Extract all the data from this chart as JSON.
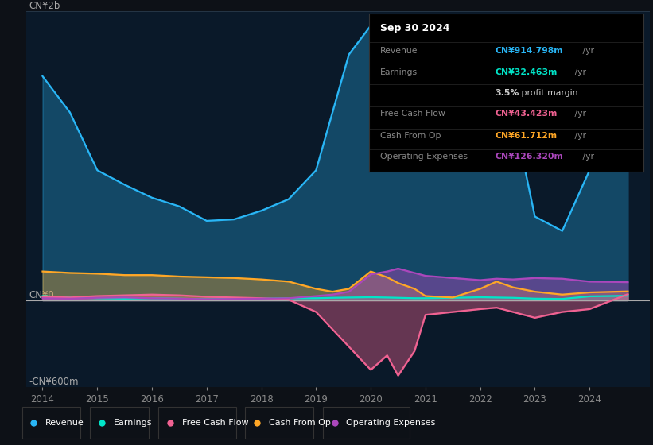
{
  "bg_color": "#0d1117",
  "plot_bg_color": "#0a1929",
  "ylabel_top": "CN¥2b",
  "ylabel_bottom": "-CN¥600m",
  "zero_label": "CN¥0",
  "info_box": {
    "date": "Sep 30 2024",
    "rows": [
      {
        "label": "Revenue",
        "value": "CN¥914.798m /yr",
        "value_color": "#29b6f6"
      },
      {
        "label": "Earnings",
        "value": "CN¥32.463m /yr",
        "value_color": "#00e5c8"
      },
      {
        "label": "",
        "value": "3.5% profit margin",
        "value_color": "#cccccc",
        "bold_part": "3.5%"
      },
      {
        "label": "Free Cash Flow",
        "value": "CN¥43.423m /yr",
        "value_color": "#f06292"
      },
      {
        "label": "Cash From Op",
        "value": "CN¥61.712m /yr",
        "value_color": "#ffa726"
      },
      {
        "label": "Operating Expenses",
        "value": "CN¥126.320m /yr",
        "value_color": "#ab47bc"
      }
    ]
  },
  "years": [
    2014.0,
    2014.5,
    2015.0,
    2015.5,
    2016.0,
    2016.5,
    2017.0,
    2017.5,
    2018.0,
    2018.5,
    2019.0,
    2019.3,
    2019.6,
    2020.0,
    2020.3,
    2020.5,
    2020.8,
    2021.0,
    2021.5,
    2022.0,
    2022.3,
    2022.6,
    2023.0,
    2023.5,
    2024.0,
    2024.7
  ],
  "revenue": [
    1550,
    1300,
    900,
    800,
    710,
    650,
    550,
    560,
    620,
    700,
    900,
    1300,
    1700,
    1900,
    1750,
    1900,
    1650,
    1050,
    1100,
    1350,
    1400,
    1300,
    580,
    480,
    900,
    915
  ],
  "earnings": [
    30,
    20,
    15,
    12,
    15,
    12,
    8,
    10,
    12,
    15,
    15,
    18,
    20,
    22,
    20,
    18,
    15,
    15,
    18,
    22,
    20,
    18,
    12,
    10,
    28,
    32
  ],
  "free_cash_flow": [
    25,
    20,
    30,
    35,
    40,
    35,
    25,
    20,
    15,
    5,
    -80,
    -200,
    -320,
    -480,
    -380,
    -520,
    -350,
    -100,
    -80,
    -60,
    -50,
    -80,
    -120,
    -80,
    -60,
    43
  ],
  "cash_from_op": [
    200,
    190,
    185,
    175,
    175,
    165,
    160,
    155,
    145,
    130,
    80,
    60,
    80,
    200,
    160,
    120,
    80,
    30,
    20,
    80,
    130,
    90,
    60,
    40,
    55,
    62
  ],
  "operating_expenses": [
    15,
    12,
    18,
    20,
    15,
    12,
    8,
    10,
    12,
    15,
    30,
    40,
    60,
    180,
    200,
    220,
    190,
    170,
    155,
    140,
    150,
    145,
    155,
    150,
    130,
    126
  ],
  "colors": {
    "revenue": "#29b6f6",
    "earnings": "#00e5c8",
    "free_cash_flow": "#f06292",
    "cash_from_op": "#ffa726",
    "operating_expenses": "#ab47bc"
  },
  "legend": [
    {
      "label": "Revenue",
      "color": "#29b6f6"
    },
    {
      "label": "Earnings",
      "color": "#00e5c8"
    },
    {
      "label": "Free Cash Flow",
      "color": "#f06292"
    },
    {
      "label": "Cash From Op",
      "color": "#ffa726"
    },
    {
      "label": "Operating Expenses",
      "color": "#ab47bc"
    }
  ],
  "ylim": [
    -600,
    2000
  ],
  "xlim": [
    2013.7,
    2025.1
  ],
  "xticks": [
    2014,
    2015,
    2016,
    2017,
    2018,
    2019,
    2020,
    2021,
    2022,
    2023,
    2024
  ]
}
